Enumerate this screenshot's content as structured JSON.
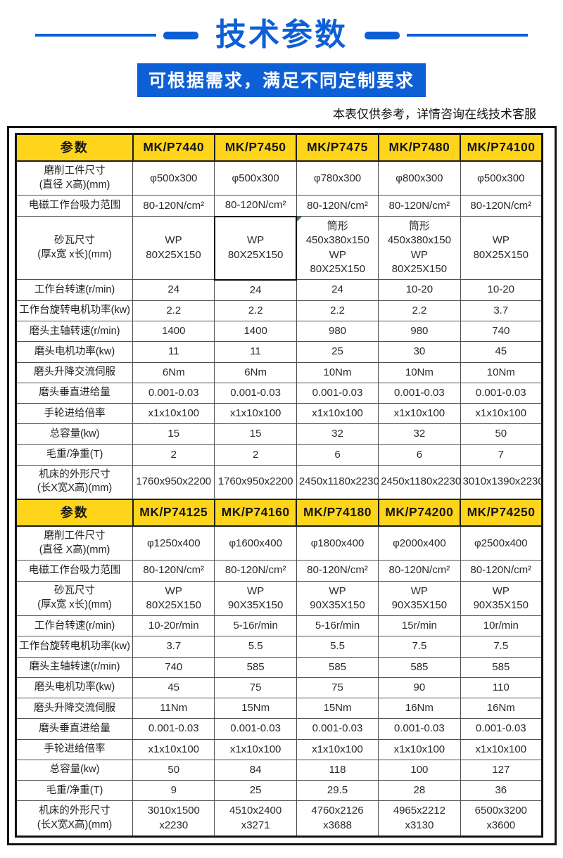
{
  "page": {
    "title": "技术参数",
    "banner": "可根据需求，满足不同定制要求",
    "note": "本表仅供参考，详情咨询在线技术客服"
  },
  "colors": {
    "accent_blue": "#0d5fd6",
    "header_yellow": "#ffd51c",
    "marker_green": "#1e8e3e"
  },
  "table": {
    "param_header": "参数",
    "sections": [
      {
        "models": [
          "MK/P7440",
          "MK/P7450",
          "MK/P7475",
          "MK/P7480",
          "MK/P74100"
        ],
        "rows": [
          {
            "label": "磨削工件尺寸\n(直径 X高)(mm)",
            "values": [
              "φ500x300",
              "φ500x300",
              "φ780x300",
              "φ800x300",
              "φ500x300"
            ]
          },
          {
            "label": "电磁工作台吸力范围",
            "values": [
              "80-120N/cm²",
              "80-120N/cm²",
              "80-120N/cm²",
              "80-120N/cm²",
              "80-120N/cm²"
            ]
          },
          {
            "label": "砂瓦尺寸\n(厚x宽 x长)(mm)",
            "values": [
              "WP\n80X25X150",
              "WP\n80X25X150",
              "筒形\n450x380x150\nWP\n80X25X150",
              "筒形\n450x380x150\nWP\n80X25X150",
              "WP\n80X25X150"
            ],
            "special": {
              "1": "box",
              "2": "mark"
            }
          },
          {
            "label": "工作台转速(r/min)",
            "values": [
              "24",
              "24",
              "24",
              "10-20",
              "10-20"
            ]
          },
          {
            "label": "工作台旋转电机功率(kw)",
            "values": [
              "2.2",
              "2.2",
              "2.2",
              "2.2",
              "3.7"
            ]
          },
          {
            "label": "磨头主轴转速(r/min)",
            "values": [
              "1400",
              "1400",
              "980",
              "980",
              "740"
            ]
          },
          {
            "label": "磨头电机功率(kw)",
            "values": [
              "11",
              "11",
              "25",
              "30",
              "45"
            ]
          },
          {
            "label": "磨头升降交流伺服",
            "values": [
              "6Nm",
              "6Nm",
              "10Nm",
              "10Nm",
              "10Nm"
            ]
          },
          {
            "label": "磨头垂直进给量",
            "values": [
              "0.001-0.03",
              "0.001-0.03",
              "0.001-0.03",
              "0.001-0.03",
              "0.001-0.03"
            ]
          },
          {
            "label": "手轮进给倍率",
            "values": [
              "x1x10x100",
              "x1x10x100",
              "x1x10x100",
              "x1x10x100",
              "x1x10x100"
            ]
          },
          {
            "label": "总容量(kw)",
            "values": [
              "15",
              "15",
              "32",
              "32",
              "50"
            ]
          },
          {
            "label": "毛重/净重(T)",
            "values": [
              "2",
              "2",
              "6",
              "6",
              "7"
            ]
          },
          {
            "label": "机床的外形尺寸\n(长X宽X高)(mm)",
            "values": [
              "1760x950x2200",
              "1760x950x2200",
              "2450x1180x2230",
              "2450x1180x2230",
              "3010x1390x2230"
            ]
          }
        ]
      },
      {
        "models": [
          "MK/P74125",
          "MK/P74160",
          "MK/P74180",
          "MK/P74200",
          "MK/P74250"
        ],
        "rows": [
          {
            "label": "磨削工件尺寸\n(直径 X高)(mm)",
            "values": [
              "φ1250x400",
              "φ1600x400",
              "φ1800x400",
              "φ2000x400",
              "φ2500x400"
            ]
          },
          {
            "label": "电磁工作台吸力范围",
            "values": [
              "80-120N/cm²",
              "80-120N/cm²",
              "80-120N/cm²",
              "80-120N/cm²",
              "80-120N/cm²"
            ]
          },
          {
            "label": "砂瓦尺寸\n(厚x宽 x长)(mm)",
            "values": [
              "WP\n80X25X150",
              "WP\n90X35X150",
              "WP\n90X35X150",
              "WP\n90X35X150",
              "WP\n90X35X150"
            ]
          },
          {
            "label": "工作台转速(r/min)",
            "values": [
              "10-20r/min",
              "5-16r/min",
              "5-16r/min",
              "15r/min",
              "10r/min"
            ]
          },
          {
            "label": "工作台旋转电机功率(kw)",
            "values": [
              "3.7",
              "5.5",
              "5.5",
              "7.5",
              "7.5"
            ]
          },
          {
            "label": "磨头主轴转速(r/min)",
            "values": [
              "740",
              "585",
              "585",
              "585",
              "585"
            ]
          },
          {
            "label": "磨头电机功率(kw)",
            "values": [
              "45",
              "75",
              "75",
              "90",
              "110"
            ]
          },
          {
            "label": "磨头升降交流伺服",
            "values": [
              "11Nm",
              "15Nm",
              "15Nm",
              "16Nm",
              "16Nm"
            ]
          },
          {
            "label": "磨头垂直进给量",
            "values": [
              "0.001-0.03",
              "0.001-0.03",
              "0.001-0.03",
              "0.001-0.03",
              "0.001-0.03"
            ]
          },
          {
            "label": "手轮进给倍率",
            "values": [
              "x1x10x100",
              "x1x10x100",
              "x1x10x100",
              "x1x10x100",
              "x1x10x100"
            ]
          },
          {
            "label": "总容量(kw)",
            "values": [
              "50",
              "84",
              "118",
              "100",
              "127"
            ]
          },
          {
            "label": "毛重/净重(T)",
            "values": [
              "9",
              "25",
              "29.5",
              "28",
              "36"
            ]
          },
          {
            "label": "机床的外形尺寸\n(长X宽X高)(mm)",
            "values": [
              "3010x1500 x2230",
              "4510x2400 x3271",
              "4760x2126 x3688",
              "4965x2212 x3130",
              "6500x3200 x3600"
            ]
          }
        ]
      }
    ]
  }
}
